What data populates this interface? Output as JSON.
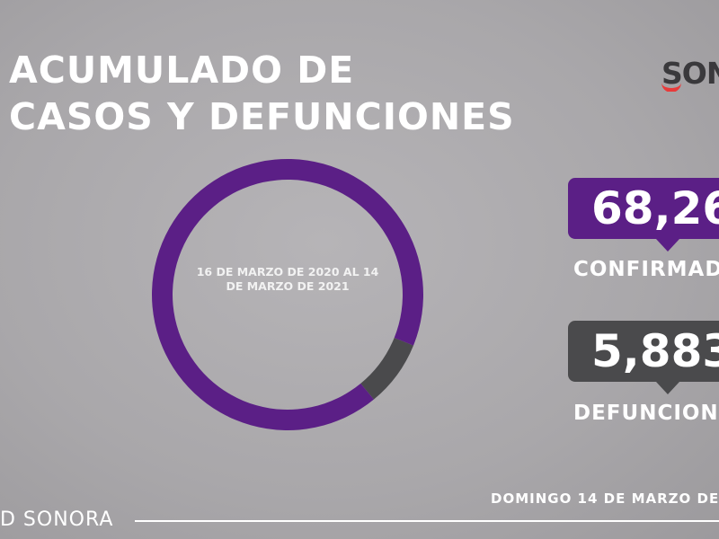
{
  "title": {
    "line1": "ACUMULADO DE",
    "line2": "CASOS Y DEFUNCIONES"
  },
  "logo": {
    "text": "SONO"
  },
  "colors": {
    "confirmed": "#5b1f86",
    "deaths": "#4a4a4c",
    "text": "#ffffff"
  },
  "chart_data": {
    "type": "pie",
    "variant": "donut",
    "center_label": "16 DE MARZO DE 2020 AL 14 DE MARZO DE 2021",
    "categories": [
      "CONFIRMADO",
      "DEFUNCIONES"
    ],
    "values": [
      68260,
      5883
    ],
    "colors": [
      "#5b1f86",
      "#4a4a4c"
    ],
    "legend": "none"
  },
  "stats": {
    "confirmed": {
      "value": "68,26",
      "label": "CONFIRMAD"
    },
    "deaths": {
      "value": "5,883",
      "label": "DEFUNCION"
    }
  },
  "date": "DOMINGO 14 DE MARZO DE",
  "footer": "D SONORA"
}
